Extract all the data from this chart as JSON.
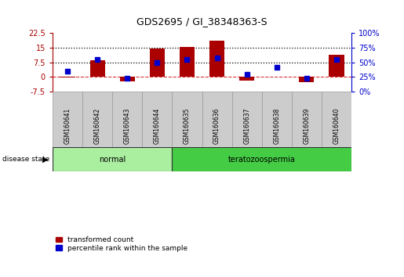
{
  "title": "GDS2695 / GI_38348363-S",
  "samples": [
    "GSM160641",
    "GSM160642",
    "GSM160643",
    "GSM160644",
    "GSM160635",
    "GSM160636",
    "GSM160637",
    "GSM160638",
    "GSM160639",
    "GSM160640"
  ],
  "bar_values": [
    -0.5,
    8.5,
    -2.5,
    14.5,
    15.5,
    18.5,
    -1.8,
    0.1,
    -2.8,
    11.5
  ],
  "dot_percentiles": [
    35,
    55,
    22,
    50,
    55,
    58,
    30,
    42,
    22,
    55
  ],
  "ylim_left": [
    -7.5,
    22.5
  ],
  "ylim_right": [
    0,
    100
  ],
  "yticks_left": [
    -7.5,
    0,
    7.5,
    15,
    22.5
  ],
  "yticks_right": [
    0,
    25,
    50,
    75,
    100
  ],
  "ytick_labels_left": [
    "-7.5",
    "0",
    "7.5",
    "15",
    "22.5"
  ],
  "ytick_labels_right": [
    "0%",
    "25%",
    "50%",
    "75%",
    "100%"
  ],
  "hlines": [
    7.5,
    15.0
  ],
  "bar_color": "#aa0000",
  "dot_color": "#0000cc",
  "zero_line_color": "#cc0000",
  "groups": [
    {
      "label": "normal",
      "start": 0,
      "end": 4,
      "color": "#aaeea0"
    },
    {
      "label": "teratozoospermia",
      "start": 4,
      "end": 10,
      "color": "#44cc44"
    }
  ],
  "disease_state_label": "disease state",
  "legend_bar_label": "transformed count",
  "legend_dot_label": "percentile rank within the sample",
  "background_color": "#ffffff",
  "plot_bg": "#ffffff",
  "sample_box_color": "#cccccc",
  "sample_box_edge": "#999999"
}
